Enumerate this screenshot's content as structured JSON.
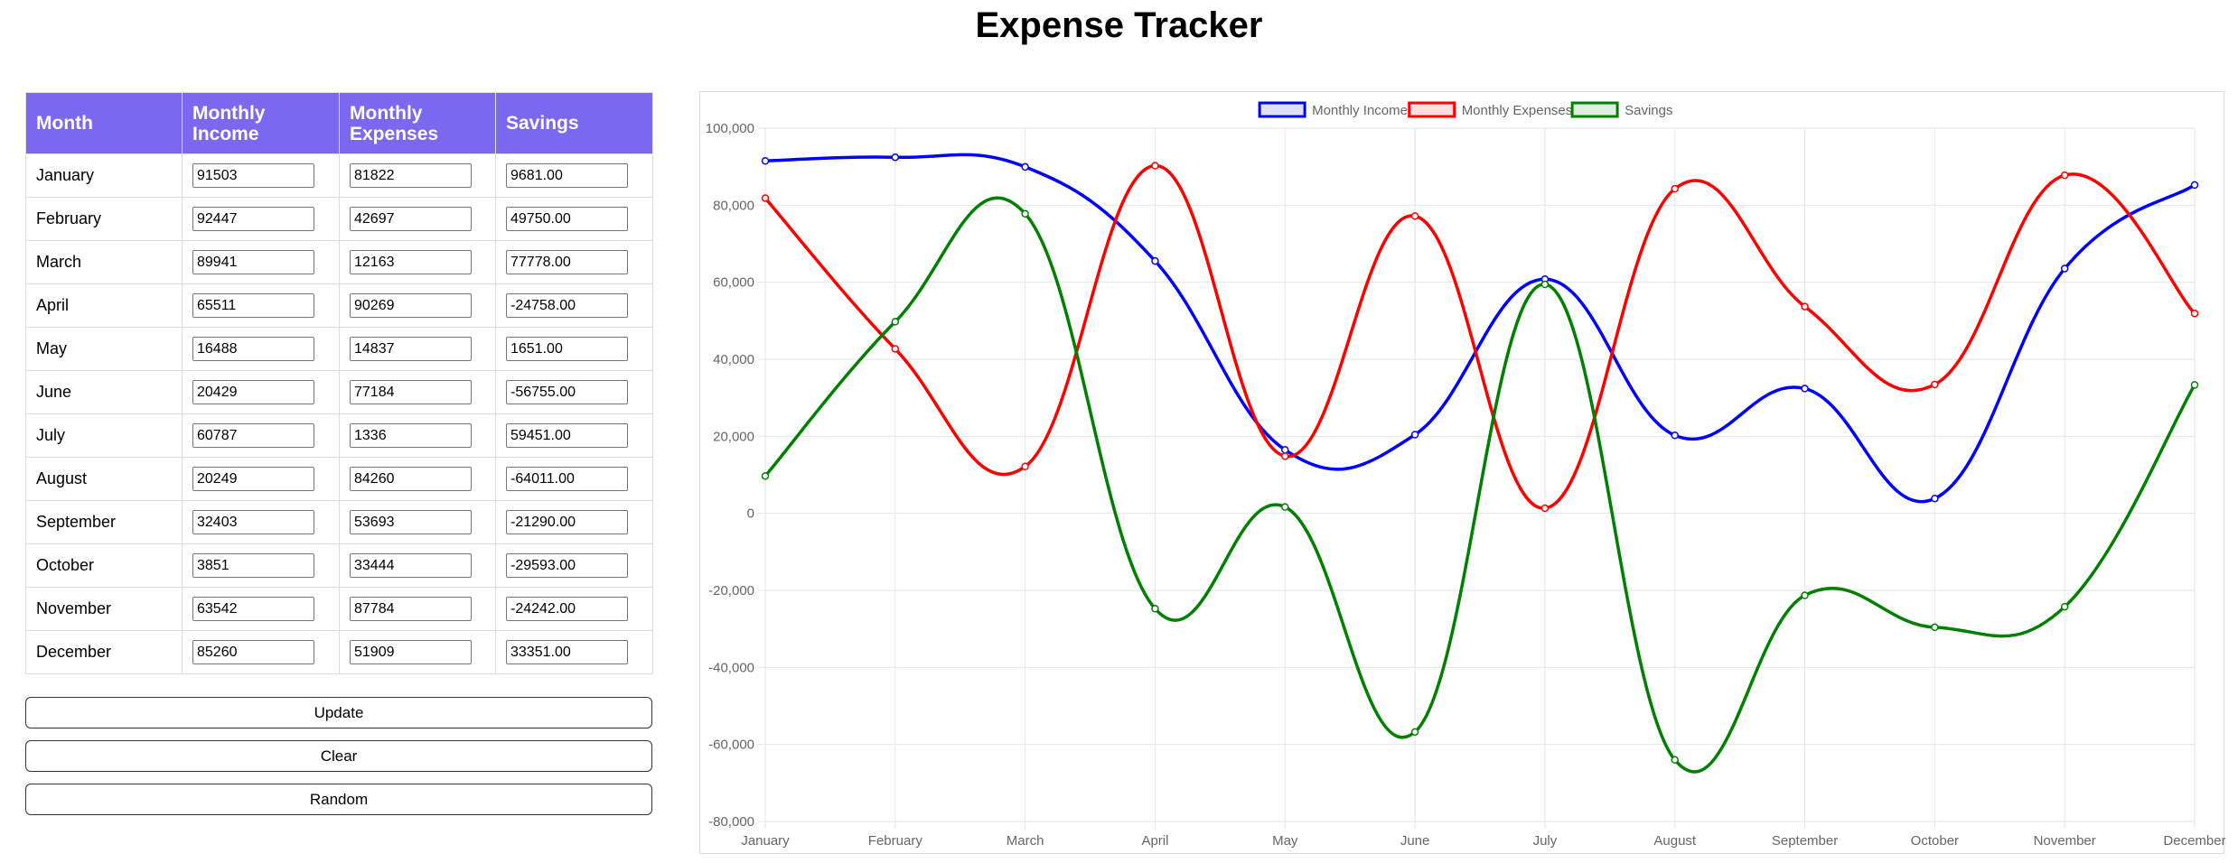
{
  "title": "Expense Tracker",
  "table": {
    "headers": [
      "Month",
      "Monthly Income",
      "Monthly Expenses",
      "Savings"
    ],
    "rows": [
      {
        "month": "January",
        "income": "91503",
        "expenses": "81822",
        "savings": "9681.00"
      },
      {
        "month": "February",
        "income": "92447",
        "expenses": "42697",
        "savings": "49750.00"
      },
      {
        "month": "March",
        "income": "89941",
        "expenses": "12163",
        "savings": "77778.00"
      },
      {
        "month": "April",
        "income": "65511",
        "expenses": "90269",
        "savings": "-24758.00"
      },
      {
        "month": "May",
        "income": "16488",
        "expenses": "14837",
        "savings": "1651.00"
      },
      {
        "month": "June",
        "income": "20429",
        "expenses": "77184",
        "savings": "-56755.00"
      },
      {
        "month": "July",
        "income": "60787",
        "expenses": "1336",
        "savings": "59451.00"
      },
      {
        "month": "August",
        "income": "20249",
        "expenses": "84260",
        "savings": "-64011.00"
      },
      {
        "month": "September",
        "income": "32403",
        "expenses": "53693",
        "savings": "-21290.00"
      },
      {
        "month": "October",
        "income": "3851",
        "expenses": "33444",
        "savings": "-29593.00"
      },
      {
        "month": "November",
        "income": "63542",
        "expenses": "87784",
        "savings": "-24242.00"
      },
      {
        "month": "December",
        "income": "85260",
        "expenses": "51909",
        "savings": "33351.00"
      }
    ]
  },
  "buttons": {
    "update": "Update",
    "clear": "Clear",
    "random": "Random"
  },
  "colors": {
    "header_bg": "#7b68ee",
    "income": "#0000ff",
    "expenses": "#ff0000",
    "savings": "#008000"
  },
  "chart_data": {
    "type": "line",
    "categories": [
      "January",
      "February",
      "March",
      "April",
      "May",
      "June",
      "July",
      "August",
      "September",
      "October",
      "November",
      "December"
    ],
    "series": [
      {
        "name": "Monthly Income",
        "color": "#0000ff",
        "values": [
          91503,
          92447,
          89941,
          65511,
          16488,
          20429,
          60787,
          20249,
          32403,
          3851,
          63542,
          85260
        ]
      },
      {
        "name": "Monthly Expenses",
        "color": "#ff0000",
        "values": [
          81822,
          42697,
          12163,
          90269,
          14837,
          77184,
          1336,
          84260,
          53693,
          33444,
          87784,
          51909
        ]
      },
      {
        "name": "Savings",
        "color": "#008000",
        "values": [
          9681,
          49750,
          77778,
          -24758,
          1651,
          -56755,
          59451,
          -64011,
          -21290,
          -29593,
          -24242,
          33351
        ]
      }
    ],
    "yticks": [
      "100,000",
      "80,000",
      "60,000",
      "40,000",
      "20,000",
      "0",
      "-20,000",
      "-40,000",
      "-60,000",
      "-80,000"
    ],
    "ylim": [
      -80000,
      100000
    ],
    "grid": true,
    "legend_position": "top-center",
    "smooth": true
  }
}
